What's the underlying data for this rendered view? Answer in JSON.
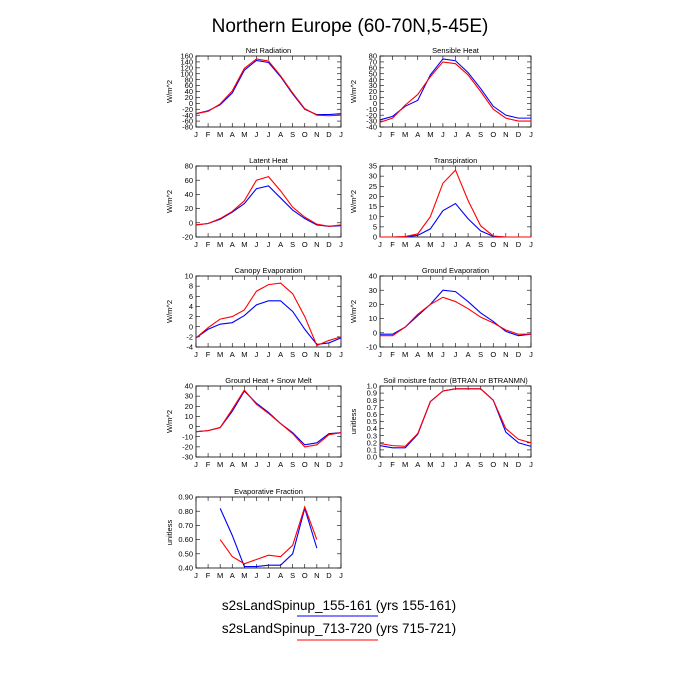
{
  "title": "Northern Europe (60-70N,5-45E)",
  "series_colors": [
    "#0000ff",
    "#ff0000"
  ],
  "legend": [
    {
      "label": "s2sLandSpinup_155-161 (yrs 155-161)",
      "color": "#0000ff"
    },
    {
      "label": "s2sLandSpinup_713-720 (yrs 715-721)",
      "color": "#ff0000"
    }
  ],
  "chart_data": [
    {
      "type": "line",
      "title": "Net Radiation",
      "ylabel": "W/m^2",
      "x": [
        "J",
        "F",
        "M",
        "A",
        "M",
        "J",
        "J",
        "A",
        "S",
        "O",
        "N",
        "D",
        "J"
      ],
      "ylim": [
        -80,
        160
      ],
      "yticks": [
        -80,
        -60,
        -40,
        -20,
        0,
        20,
        40,
        60,
        80,
        100,
        120,
        140,
        160
      ],
      "series": [
        {
          "values": [
            -35,
            -25,
            -5,
            35,
            112,
            145,
            138,
            90,
            32,
            -20,
            -38,
            -38,
            -35
          ]
        },
        {
          "values": [
            -35,
            -27,
            -2,
            42,
            118,
            150,
            143,
            93,
            35,
            -18,
            -40,
            -42,
            -40
          ]
        }
      ]
    },
    {
      "type": "line",
      "title": "Sensible Heat",
      "ylabel": "W/m^2",
      "x": [
        "J",
        "F",
        "M",
        "A",
        "M",
        "J",
        "J",
        "A",
        "S",
        "O",
        "N",
        "D",
        "J"
      ],
      "ylim": [
        -40,
        80
      ],
      "yticks": [
        -40,
        -30,
        -20,
        -10,
        0,
        10,
        20,
        30,
        40,
        50,
        60,
        70,
        80
      ],
      "series": [
        {
          "values": [
            -28,
            -22,
            -5,
            5,
            48,
            75,
            72,
            52,
            25,
            -5,
            -20,
            -25,
            -25
          ]
        },
        {
          "values": [
            -32,
            -25,
            -3,
            15,
            45,
            70,
            67,
            48,
            20,
            -10,
            -25,
            -30,
            -30
          ]
        }
      ]
    },
    {
      "type": "line",
      "title": "Latent Heat",
      "ylabel": "W/m^2",
      "x": [
        "J",
        "F",
        "M",
        "A",
        "M",
        "J",
        "J",
        "A",
        "S",
        "O",
        "N",
        "D",
        "J"
      ],
      "ylim": [
        -20,
        80
      ],
      "yticks": [
        -20,
        0,
        20,
        40,
        60,
        80
      ],
      "series": [
        {
          "values": [
            -3,
            -1,
            5,
            15,
            27,
            48,
            52,
            35,
            18,
            6,
            -3,
            -5,
            -4
          ]
        },
        {
          "values": [
            -3,
            -1,
            6,
            16,
            31,
            60,
            65,
            45,
            22,
            8,
            -2,
            -5,
            -3
          ]
        }
      ]
    },
    {
      "type": "line",
      "title": "Transpiration",
      "ylabel": "W/m^2",
      "x": [
        "J",
        "F",
        "M",
        "A",
        "M",
        "J",
        "J",
        "A",
        "S",
        "O",
        "N",
        "D",
        "J"
      ],
      "ylim": [
        0,
        35
      ],
      "yticks": [
        0,
        5,
        10,
        15,
        20,
        25,
        30,
        35
      ],
      "series": [
        {
          "values": [
            0,
            0,
            0.1,
            0.8,
            4,
            13,
            16.5,
            9,
            3,
            0.3,
            0,
            0,
            0
          ]
        },
        {
          "values": [
            0,
            0,
            0.2,
            1.5,
            10,
            26.5,
            33,
            18,
            5.5,
            0.5,
            0,
            0,
            0
          ]
        }
      ]
    },
    {
      "type": "line",
      "title": "Canopy Evaporation",
      "ylabel": "W/m^2",
      "x": [
        "J",
        "F",
        "M",
        "A",
        "M",
        "J",
        "J",
        "A",
        "S",
        "O",
        "N",
        "D",
        "J"
      ],
      "ylim": [
        -4,
        10
      ],
      "yticks": [
        -4,
        -2,
        0,
        2,
        4,
        6,
        8,
        10
      ],
      "series": [
        {
          "values": [
            -2.2,
            -0.5,
            0.5,
            0.8,
            2.2,
            4.3,
            5.1,
            5.1,
            3,
            -0.5,
            -3.5,
            -3.2,
            -2.2
          ]
        },
        {
          "values": [
            -2.2,
            -0.2,
            1.5,
            2,
            3.3,
            7,
            8.3,
            8.6,
            6.5,
            2,
            -3.7,
            -2.7,
            -2
          ]
        }
      ]
    },
    {
      "type": "line",
      "title": "Ground Evaporation",
      "ylabel": "W/m^2",
      "x": [
        "J",
        "F",
        "M",
        "A",
        "M",
        "J",
        "J",
        "A",
        "S",
        "O",
        "N",
        "D",
        "J"
      ],
      "ylim": [
        -10,
        40
      ],
      "yticks": [
        -10,
        0,
        10,
        20,
        30,
        40
      ],
      "series": [
        {
          "values": [
            -1,
            -1,
            4,
            12,
            20,
            30,
            29,
            22,
            14,
            8,
            1,
            -2,
            -1
          ]
        },
        {
          "values": [
            -2,
            -2,
            4,
            13,
            20,
            25,
            22,
            17,
            11,
            7,
            2,
            -1,
            -1
          ]
        }
      ]
    },
    {
      "type": "line",
      "title": "Ground Heat + Snow Melt",
      "ylabel": "W/m^2",
      "x": [
        "J",
        "F",
        "M",
        "A",
        "M",
        "J",
        "J",
        "A",
        "S",
        "O",
        "N",
        "D",
        "J"
      ],
      "ylim": [
        -30,
        40
      ],
      "yticks": [
        -30,
        -20,
        -10,
        0,
        10,
        20,
        30,
        40
      ],
      "series": [
        {
          "values": [
            -5,
            -4,
            -1,
            15,
            35,
            23,
            14,
            3,
            -6,
            -18,
            -16,
            -7,
            -6
          ]
        },
        {
          "values": [
            -5,
            -4,
            -1,
            17,
            36,
            22,
            13,
            3,
            -7,
            -20,
            -18,
            -8,
            -6
          ]
        }
      ]
    },
    {
      "type": "line",
      "title": "Soil moisture factor (BTRAN or BTRANMN)",
      "ylabel": "unitless",
      "x": [
        "J",
        "F",
        "M",
        "A",
        "M",
        "J",
        "J",
        "A",
        "S",
        "O",
        "N",
        "D",
        "J"
      ],
      "ylim": [
        0.0,
        1.0
      ],
      "yticks": [
        0.0,
        0.1,
        0.2,
        0.3,
        0.4,
        0.5,
        0.6,
        0.7,
        0.8,
        0.9,
        1.0
      ],
      "ytick_labels": [
        "0.0",
        "0.1",
        "0.2",
        "0.3",
        "0.4",
        "0.5",
        "0.6",
        "0.7",
        "0.8",
        "0.9",
        "1.0"
      ],
      "series": [
        {
          "values": [
            0.16,
            0.13,
            0.13,
            0.32,
            0.78,
            0.93,
            0.96,
            0.96,
            0.96,
            0.8,
            0.35,
            0.2,
            0.15
          ]
        },
        {
          "values": [
            0.19,
            0.16,
            0.15,
            0.33,
            0.78,
            0.93,
            0.96,
            0.96,
            0.96,
            0.8,
            0.4,
            0.25,
            0.2
          ]
        }
      ]
    },
    {
      "type": "line",
      "title": "Evaporative Fraction",
      "ylabel": "unitless",
      "x": [
        "J",
        "F",
        "M",
        "A",
        "M",
        "J",
        "J",
        "A",
        "S",
        "O",
        "N",
        "D",
        "J"
      ],
      "ylim": [
        0.4,
        0.9
      ],
      "yticks": [
        0.4,
        0.5,
        0.6,
        0.7,
        0.8,
        0.9
      ],
      "ytick_labels": [
        "0.40",
        "0.50",
        "0.60",
        "0.70",
        "0.80",
        "0.90"
      ],
      "series": [
        {
          "values": [
            null,
            null,
            0.82,
            0.63,
            0.41,
            0.41,
            0.42,
            0.42,
            0.5,
            0.82,
            0.54,
            null,
            null
          ]
        },
        {
          "values": [
            null,
            null,
            0.6,
            0.48,
            0.43,
            0.46,
            0.49,
            0.48,
            0.56,
            0.83,
            0.6,
            null,
            null
          ]
        }
      ]
    }
  ]
}
